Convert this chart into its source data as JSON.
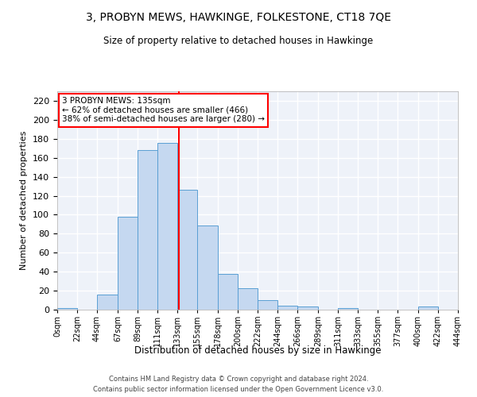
{
  "title": "3, PROBYN MEWS, HAWKINGE, FOLKESTONE, CT18 7QE",
  "subtitle": "Size of property relative to detached houses in Hawkinge",
  "xlabel": "Distribution of detached houses by size in Hawkinge",
  "ylabel": "Number of detached properties",
  "bar_color": "#c5d8f0",
  "bar_edge_color": "#5a9fd4",
  "background_color": "#eef2f9",
  "grid_color": "#ffffff",
  "property_line_x": 135,
  "property_line_color": "red",
  "annotation_line1": "3 PROBYN MEWS: 135sqm",
  "annotation_line2": "← 62% of detached houses are smaller (466)",
  "annotation_line3": "38% of semi-detached houses are larger (280) →",
  "annotation_box_color": "white",
  "annotation_edge_color": "red",
  "bin_edges": [
    0,
    22,
    44,
    67,
    89,
    111,
    133,
    155,
    178,
    200,
    222,
    244,
    266,
    289,
    311,
    333,
    355,
    377,
    400,
    422,
    444
  ],
  "bin_counts": [
    2,
    0,
    16,
    98,
    168,
    176,
    126,
    89,
    38,
    23,
    10,
    4,
    3,
    0,
    2,
    0,
    0,
    0,
    3,
    0
  ],
  "ylim": [
    0,
    230
  ],
  "yticks": [
    0,
    20,
    40,
    60,
    80,
    100,
    120,
    140,
    160,
    180,
    200,
    220
  ],
  "footer_text": "Contains HM Land Registry data © Crown copyright and database right 2024.\nContains public sector information licensed under the Open Government Licence v3.0.",
  "tick_labels": [
    "0sqm",
    "22sqm",
    "44sqm",
    "67sqm",
    "89sqm",
    "111sqm",
    "133sqm",
    "155sqm",
    "178sqm",
    "200sqm",
    "222sqm",
    "244sqm",
    "266sqm",
    "289sqm",
    "311sqm",
    "333sqm",
    "355sqm",
    "377sqm",
    "400sqm",
    "422sqm",
    "444sqm"
  ]
}
